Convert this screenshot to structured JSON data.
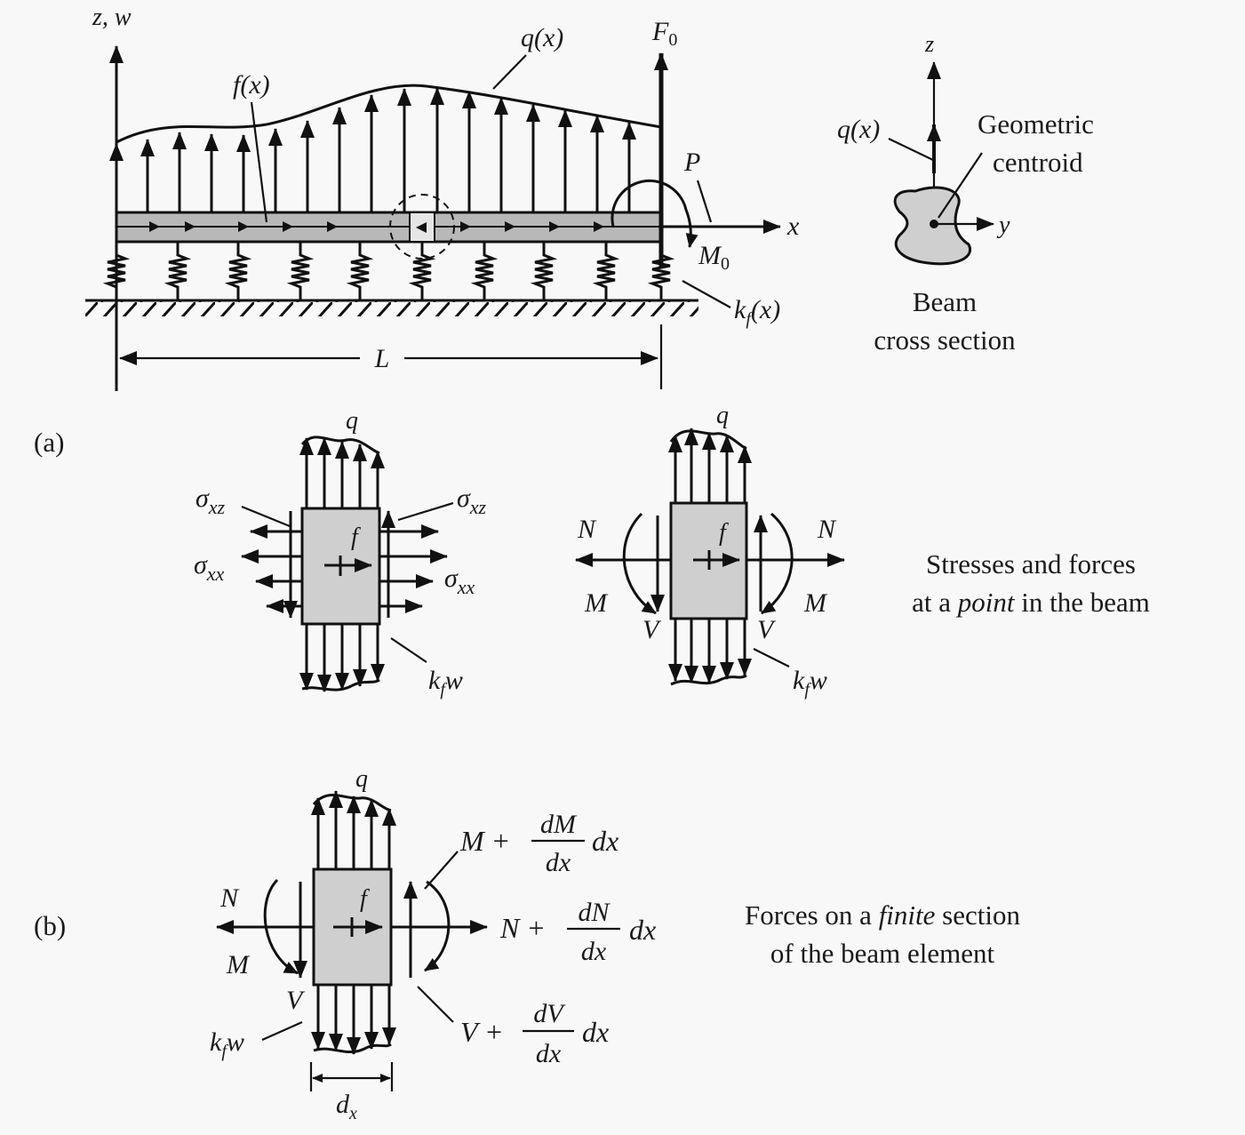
{
  "panel_a": {
    "tag": "(a)",
    "beam": {
      "axis_z": "z, w",
      "axis_x": "x",
      "load_q": "q(x)",
      "load_f": "f(x)",
      "force_F": "F",
      "force_F_sub": "0",
      "force_P": "P",
      "moment": "M",
      "moment_sub": "0",
      "spring": "k",
      "spring_sub": "f",
      "spring_arg": "(x)",
      "length": "L"
    },
    "cross_section": {
      "z": "z",
      "y": "y",
      "q": "q(x)",
      "centroid_line1": "Geometric",
      "centroid_line2": "centroid",
      "title_line1": "Beam",
      "title_line2": "cross section"
    },
    "stress_element": {
      "q": "q",
      "f": "f",
      "sxz_sym": "σ",
      "sxz_sub": "xz",
      "sxx_sym": "σ",
      "sxx_sub": "xx",
      "kfw_k": "k",
      "kfw_sub": "f",
      "kfw_w": "w"
    },
    "force_element": {
      "q": "q",
      "f": "f",
      "N_left": "N",
      "N_right": "N",
      "M_left": "M",
      "M_right": "M",
      "V_left": "V",
      "V_right": "V"
    },
    "caption_line1": "Stresses and forces",
    "caption_line2_pre": "at a ",
    "caption_line2_em": "point",
    "caption_line2_post": " in the beam"
  },
  "panel_b": {
    "tag": "(b)",
    "q": "q",
    "f": "f",
    "N": "N",
    "M": "M",
    "V": "V",
    "kfw_k": "k",
    "kfw_sub": "f",
    "kfw_w": "w",
    "dx_d": "d",
    "dx_sub": "x",
    "M_plus": "M +",
    "dM": "dM",
    "N_plus": "N +",
    "dN": "dN",
    "V_plus": "V +",
    "dV": "dV",
    "denom": "dx",
    "tail": "dx",
    "caption_line1_pre": "Forces on a ",
    "caption_line1_em": "finite",
    "caption_line1_post": " section",
    "caption_line2": "of the beam element"
  }
}
